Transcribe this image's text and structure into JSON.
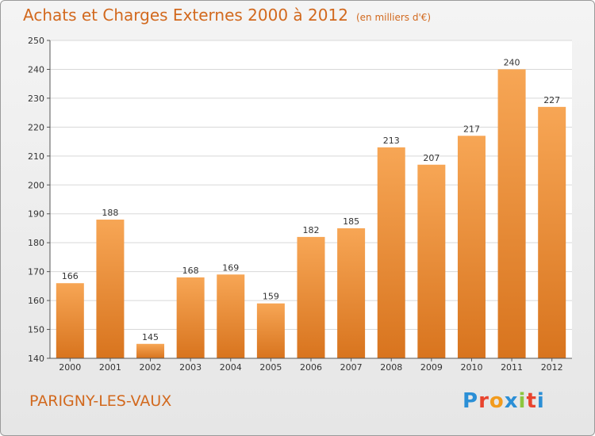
{
  "header": {
    "title": "Achats et Charges Externes 2000 à 2012",
    "unit": "(en milliers d'€)"
  },
  "footer": {
    "commune": "PARIGNY-LES-VAUX",
    "logo": [
      "P",
      "r",
      "o",
      "x",
      "i",
      "t",
      "i"
    ],
    "logo_colors": [
      "#2b8fd6",
      "#e8442e",
      "#f29b1d",
      "#2b8fd6",
      "#8cc63f",
      "#e8442e",
      "#2b8fd6"
    ]
  },
  "colors": {
    "title": "#d2691e",
    "bar_top": "#f7a655",
    "bar_bottom": "#d8741e",
    "gridline": "#d8d8d8"
  },
  "chart_data": {
    "type": "bar",
    "categories": [
      "2000",
      "2001",
      "2002",
      "2003",
      "2004",
      "2005",
      "2006",
      "2007",
      "2008",
      "2009",
      "2010",
      "2011",
      "2012"
    ],
    "values": [
      166,
      188,
      145,
      168,
      169,
      159,
      182,
      185,
      213,
      207,
      217,
      240,
      227
    ],
    "yticks": [
      140,
      150,
      160,
      170,
      180,
      190,
      200,
      210,
      220,
      230,
      240,
      250
    ],
    "ylim": [
      140,
      250
    ],
    "title": "Achats et Charges Externes 2000 à 2012",
    "xlabel": "",
    "ylabel": "",
    "grid": true
  }
}
